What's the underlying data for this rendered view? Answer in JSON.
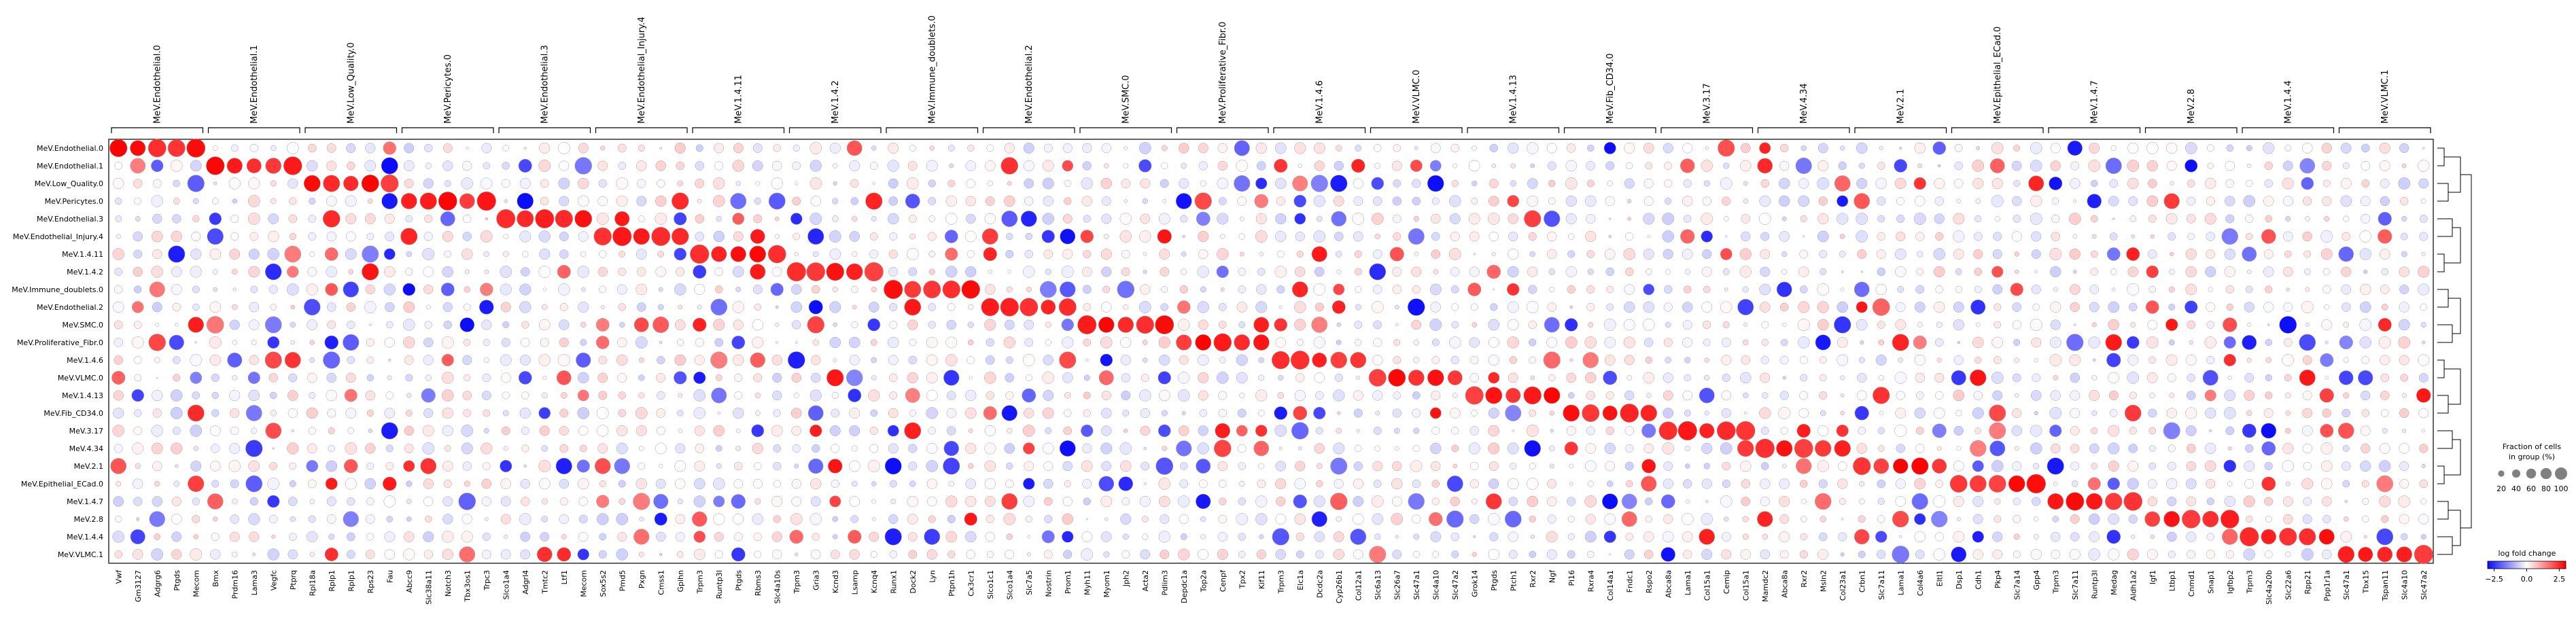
{
  "chart_data": {
    "type": "dotplot",
    "rows": [
      "MeV.Endothelial.0",
      "MeV.Endothelial.1",
      "MeV.Low_Quality.0",
      "MeV.Pericytes.0",
      "MeV.Endothelial.3",
      "MeV.Endothelial_Injury.4",
      "MeV.1.4.11",
      "MeV.1.4.2",
      "MeV.Immune_doublets.0",
      "MeV.Endothelial.2",
      "MeV.SMC.0",
      "MeV.Proliferative_Fibr.0",
      "MeV.1.4.6",
      "MeV.VLMC.0",
      "MeV.1.4.13",
      "MeV.Fib_CD34.0",
      "MeV.3.17",
      "MeV.4.34",
      "MeV.2.1",
      "MeV.Epithelial_ECad.0",
      "MeV.1.4.7",
      "MeV.2.8",
      "MeV.1.4.4",
      "MeV.VLMC.1"
    ],
    "groups": [
      {
        "name": "MeV.Endothelial.0",
        "genes": [
          "Vwf",
          "Gm3127",
          "Adgrg6",
          "Ptgds",
          "Mecom"
        ]
      },
      {
        "name": "MeV.Endothelial.1",
        "genes": [
          "Bmx",
          "Prdm16",
          "Lama3",
          "Vegfc",
          "Ptprq"
        ]
      },
      {
        "name": "MeV.Low_Quality.0",
        "genes": [
          "Rpl18a",
          "Rplp1",
          "Rplp1",
          "Rps23",
          "Fau"
        ]
      },
      {
        "name": "MeV.Pericytes.0",
        "genes": [
          "Abcc9",
          "Slc38a11",
          "Notch3",
          "Tbx3os1",
          "Trpc3"
        ]
      },
      {
        "name": "MeV.Endothelial.3",
        "genes": [
          "Slco1a4",
          "Adgrl4",
          "Tmtc2",
          "Ltf1",
          "Mecom"
        ]
      },
      {
        "name": "MeV.Endothelial_Injury.4",
        "genes": [
          "Sox5s2",
          "Pmd5",
          "Pxgn",
          "Cmss1",
          "Gpihn"
        ]
      },
      {
        "name": "MeV.1.4.11",
        "genes": [
          "Trpm3",
          "Runtp3l",
          "Ptgds",
          "Rbms3",
          "Slc4a10s"
        ]
      },
      {
        "name": "MeV.1.4.2",
        "genes": [
          "Trpm3",
          "Gria3",
          "Kcnd3",
          "Lsamp",
          "Kcnq4"
        ]
      },
      {
        "name": "MeV.Immune_doublets.0",
        "genes": [
          "Runx1",
          "Dock2",
          "Lyn",
          "Ptpn1h",
          "Cx3cr1"
        ]
      },
      {
        "name": "MeV.Endothelial.2",
        "genes": [
          "Slco1c1",
          "Slco1a4",
          "Slc7a5",
          "Nostrin",
          "Prom1"
        ]
      },
      {
        "name": "MeV.SMC.0",
        "genes": [
          "Myh11",
          "Myom1",
          "Jph2",
          "Acta2",
          "Pdlim3"
        ]
      },
      {
        "name": "MeV.Proliferative_Fibr.0",
        "genes": [
          "Depdc1a",
          "Top2a",
          "Cenpf",
          "Tpx2",
          "Kif11"
        ]
      },
      {
        "name": "MeV.1.4.6",
        "genes": [
          "Trpm3",
          "Elc1a",
          "Dcdc2a",
          "Cyp26b1",
          "Col12a1"
        ]
      },
      {
        "name": "MeV.VLMC.0",
        "genes": [
          "Slc6a13",
          "Slc26a7",
          "Slc47a1",
          "Slc4a10",
          "Slc47a2"
        ]
      },
      {
        "name": "MeV.1.4.13",
        "genes": [
          "Grok14",
          "Ptgds",
          "Ptch1",
          "Rxr2",
          "Ngf"
        ]
      },
      {
        "name": "MeV.Fib_CD34.0",
        "genes": [
          "Pi16",
          "Rxra4",
          "Col14a1",
          "Fndc1",
          "Rspo2"
        ]
      },
      {
        "name": "MeV.3.17",
        "genes": [
          "Abca8a",
          "Lama1",
          "Col15a1",
          "Cemip",
          "Col15a1"
        ]
      },
      {
        "name": "MeV.4.34",
        "genes": [
          "Mamdc2",
          "Abca8a",
          "Rxr2",
          "Msln2",
          "Col23a1"
        ]
      },
      {
        "name": "MeV.2.1",
        "genes": [
          "Crbn1",
          "Slc7a11",
          "Lama1",
          "Col4a6",
          "Eltl1"
        ]
      },
      {
        "name": "MeV.Epithelial_ECad.0",
        "genes": [
          "Dsp1",
          "Cdh1",
          "Pkp4",
          "Slc7a14",
          "Gpp4"
        ]
      },
      {
        "name": "MeV.1.4.7",
        "genes": [
          "Trpm3",
          "Slc7a11",
          "Runtp3l",
          "Medag",
          "Aldh1a2"
        ]
      },
      {
        "name": "MeV.2.8",
        "genes": [
          "Igf1",
          "Ltbp1",
          "Cnmd1",
          "Snap1",
          "Igfbp2"
        ]
      },
      {
        "name": "MeV.1.4.4",
        "genes": [
          "Trpm3",
          "Slc4a20b",
          "Slc22a6",
          "Rpp21",
          "Ppp1r1a"
        ]
      },
      {
        "name": "MeV.VLMC.1",
        "genes": [
          "Slc47a1",
          "Tbx15",
          "Tspan11",
          "Slc4a10",
          "Slc47a2"
        ]
      }
    ],
    "color_scale": {
      "label": "log fold change",
      "min": -3,
      "max": 3,
      "ticks": [
        "−2.5",
        "0.0",
        "2.5"
      ],
      "low": "#0b0bff",
      "mid": "#ffffff",
      "high": "#ff0000"
    },
    "size_legend": {
      "title_line1": "Fraction of cells",
      "title_line2": "in group (%)",
      "ticks": [
        "20",
        "40",
        "60",
        "80",
        "100"
      ]
    },
    "dendrogram": true,
    "grid": false,
    "legend_position": "right"
  },
  "colors": {
    "up": "#ff0000",
    "down": "#0b0bff",
    "neutral": "#ffffff",
    "stroke": "#9a9a9a"
  }
}
